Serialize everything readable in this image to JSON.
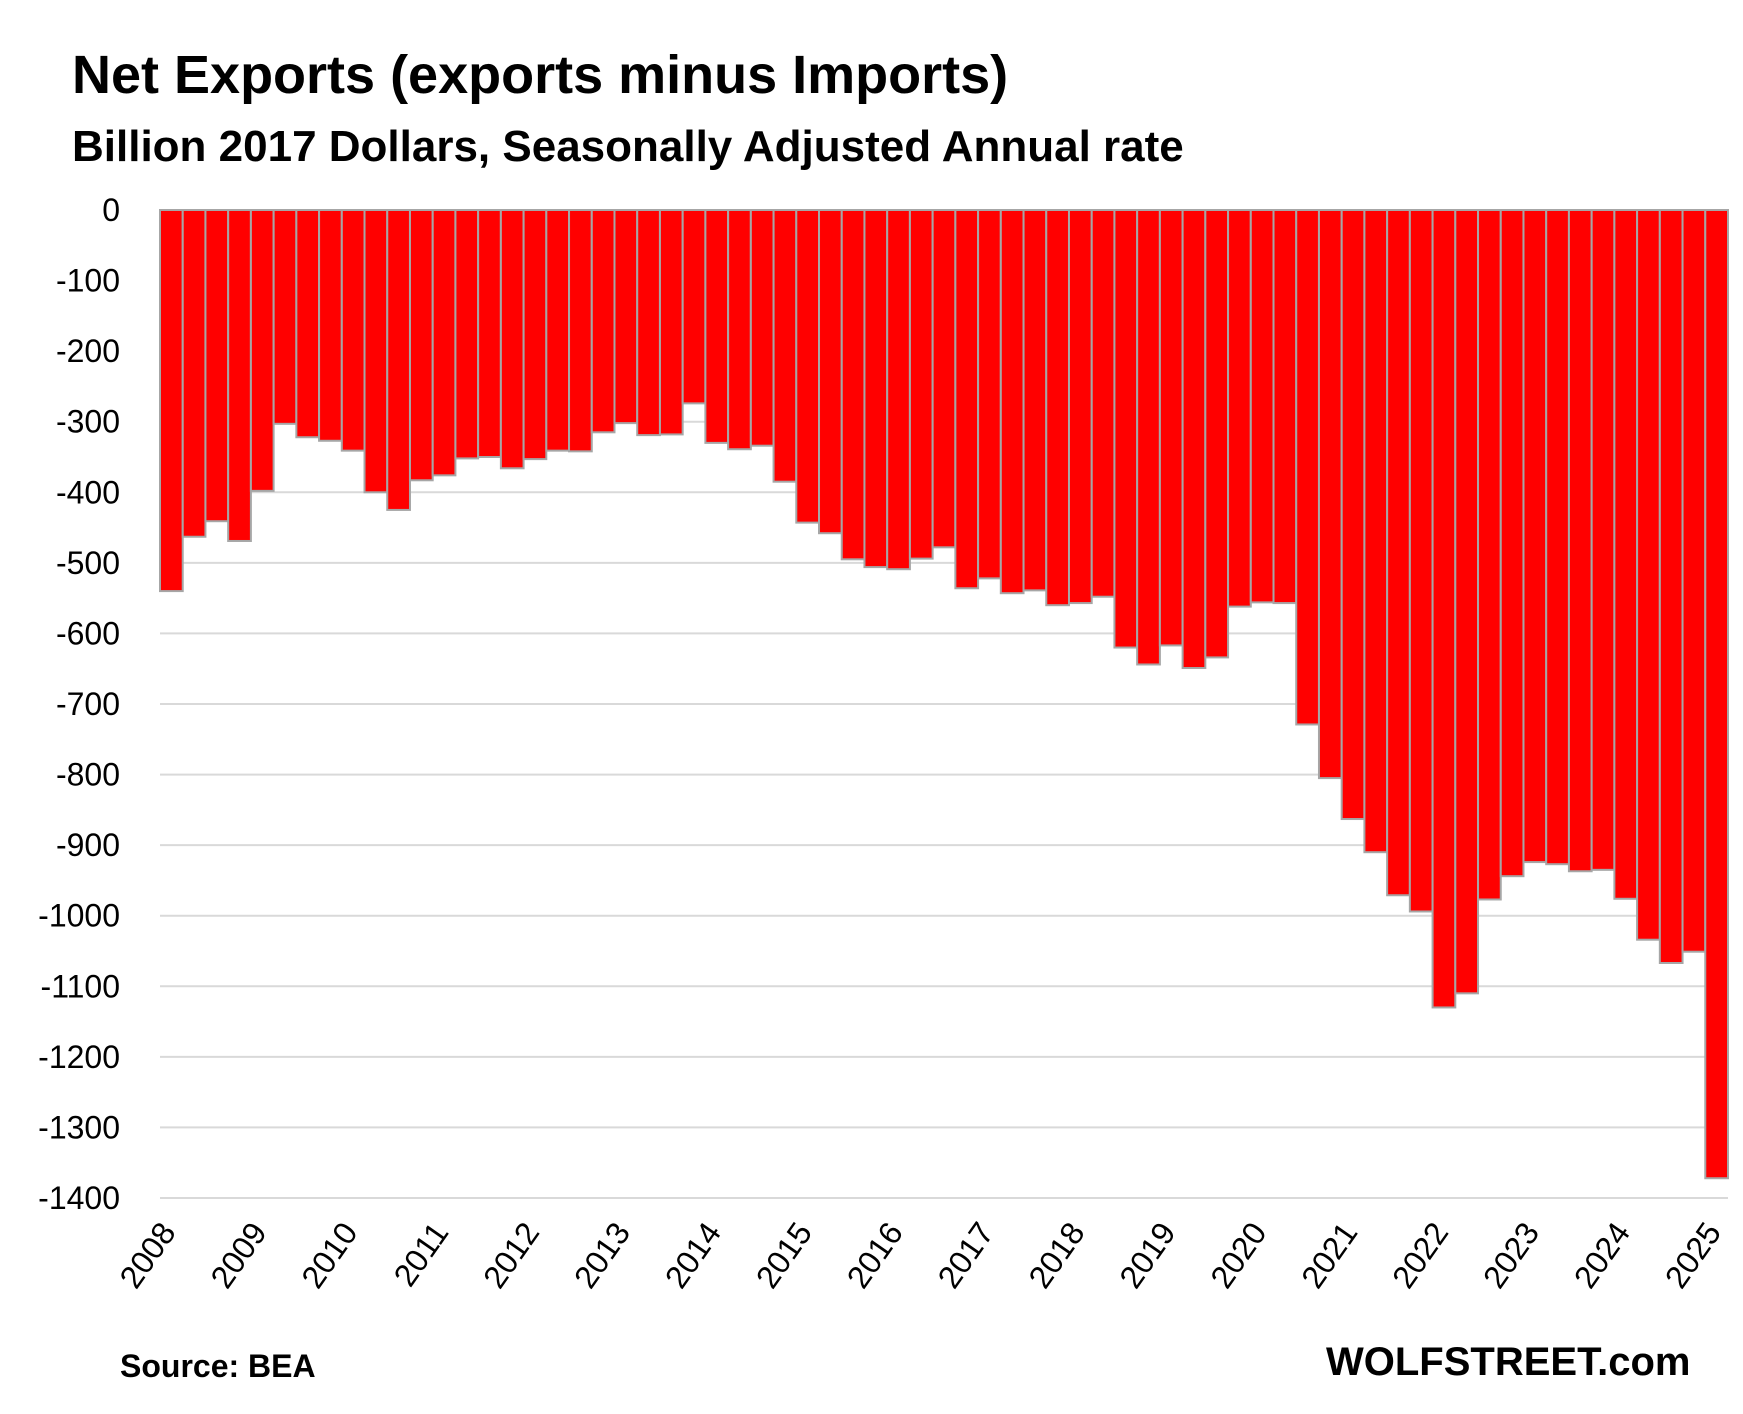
{
  "chart_data": {
    "type": "bar",
    "title": "Net Exports (exports minus Imports)",
    "subtitle": "Billion 2017 Dollars, Seasonally Adjusted Annual rate",
    "xlabel": "",
    "ylabel": "",
    "ylim": [
      -1400,
      0
    ],
    "yticks": [
      0,
      -100,
      -200,
      -300,
      -400,
      -500,
      -600,
      -700,
      -800,
      -900,
      -1000,
      -1100,
      -1200,
      -1300,
      -1400
    ],
    "x_tick_labels": [
      "2008",
      "2009",
      "2010",
      "2011",
      "2012",
      "2013",
      "2014",
      "2015",
      "2016",
      "2017",
      "2018",
      "2019",
      "2020",
      "2021",
      "2022",
      "2023",
      "2024",
      "2025"
    ],
    "grid": true,
    "colors": {
      "bar": "#ff0000",
      "bar_edge": "#a6a6a6",
      "grid": "#d9d9d9"
    },
    "categories": [
      "2008 Q1",
      "2008 Q2",
      "2008 Q3",
      "2008 Q4",
      "2009 Q1",
      "2009 Q2",
      "2009 Q3",
      "2009 Q4",
      "2010 Q1",
      "2010 Q2",
      "2010 Q3",
      "2010 Q4",
      "2011 Q1",
      "2011 Q2",
      "2011 Q3",
      "2011 Q4",
      "2012 Q1",
      "2012 Q2",
      "2012 Q3",
      "2012 Q4",
      "2013 Q1",
      "2013 Q2",
      "2013 Q3",
      "2013 Q4",
      "2014 Q1",
      "2014 Q2",
      "2014 Q3",
      "2014 Q4",
      "2015 Q1",
      "2015 Q2",
      "2015 Q3",
      "2015 Q4",
      "2016 Q1",
      "2016 Q2",
      "2016 Q3",
      "2016 Q4",
      "2017 Q1",
      "2017 Q2",
      "2017 Q3",
      "2017 Q4",
      "2018 Q1",
      "2018 Q2",
      "2018 Q3",
      "2018 Q4",
      "2019 Q1",
      "2019 Q2",
      "2019 Q3",
      "2019 Q4",
      "2020 Q1",
      "2020 Q2",
      "2020 Q3",
      "2020 Q4",
      "2021 Q1",
      "2021 Q2",
      "2021 Q3",
      "2021 Q4",
      "2022 Q1",
      "2022 Q2",
      "2022 Q3",
      "2022 Q4",
      "2023 Q1",
      "2023 Q2",
      "2023 Q3",
      "2023 Q4",
      "2024 Q1",
      "2024 Q2",
      "2024 Q3",
      "2024 Q4",
      "2025 Q1"
    ],
    "values": [
      -540,
      -463,
      -441,
      -469,
      -398,
      -303,
      -322,
      -327,
      -341,
      -400,
      -425,
      -383,
      -376,
      -352,
      -350,
      -366,
      -353,
      -341,
      -342,
      -315,
      -302,
      -319,
      -318,
      -274,
      -330,
      -339,
      -334,
      -385,
      -443,
      -458,
      -495,
      -506,
      -509,
      -494,
      -478,
      -536,
      -522,
      -543,
      -539,
      -560,
      -557,
      -548,
      -620,
      -644,
      -617,
      -649,
      -634,
      -562,
      -556,
      -557,
      -729,
      -805,
      -863,
      -910,
      -971,
      -994,
      -1130,
      -1110,
      -977,
      -944,
      -924,
      -927,
      -937,
      -935,
      -976,
      -1034,
      -1067,
      -1051,
      -1372
    ]
  },
  "footer": {
    "source": "Source: BEA",
    "brand": "WOLFSTREET.com"
  }
}
